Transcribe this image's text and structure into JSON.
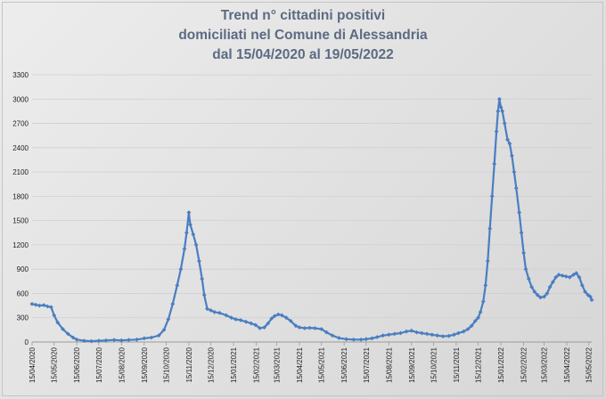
{
  "chart_data": {
    "type": "line",
    "title_lines": [
      "Trend n° cittadini positivi",
      "domiciliati nel Comune di Alessandria",
      "dal 15/04/2020 al 19/05/2022"
    ],
    "xlabel": "",
    "ylabel": "",
    "x_range": [
      "2020-04-15",
      "2022-05-19"
    ],
    "ylim": [
      0,
      3300
    ],
    "y_ticks": [
      0,
      300,
      600,
      900,
      1200,
      1500,
      1800,
      2100,
      2400,
      2700,
      3000,
      3300
    ],
    "x_ticks": [
      "15/04/2020",
      "15/05/2020",
      "15/06/2020",
      "15/07/2020",
      "15/08/2020",
      "15/09/2020",
      "15/10/2020",
      "15/11/2020",
      "15/12/2020",
      "15/01/2021",
      "15/02/2021",
      "15/03/2021",
      "15/04/2021",
      "15/05/2021",
      "15/06/2021",
      "15/07/2021",
      "15/08/2021",
      "15/09/2021",
      "15/10/2021",
      "15/11/2021",
      "15/12/2021",
      "15/01/2022",
      "15/02/2022",
      "15/03/2022",
      "15/04/2022",
      "15/05/2022"
    ],
    "grid": true,
    "legend": "none",
    "color": "#4a7ec1",
    "series": [
      {
        "points": [
          [
            "2020-04-15",
            470
          ],
          [
            "2020-04-20",
            460
          ],
          [
            "2020-04-25",
            450
          ],
          [
            "2020-05-01",
            455
          ],
          [
            "2020-05-06",
            440
          ],
          [
            "2020-05-11",
            430
          ],
          [
            "2020-05-15",
            330
          ],
          [
            "2020-05-20",
            240
          ],
          [
            "2020-05-27",
            160
          ],
          [
            "2020-06-03",
            100
          ],
          [
            "2020-06-10",
            55
          ],
          [
            "2020-06-15",
            30
          ],
          [
            "2020-06-25",
            15
          ],
          [
            "2020-07-05",
            10
          ],
          [
            "2020-07-15",
            15
          ],
          [
            "2020-07-25",
            20
          ],
          [
            "2020-08-05",
            25
          ],
          [
            "2020-08-15",
            20
          ],
          [
            "2020-08-25",
            25
          ],
          [
            "2020-09-05",
            30
          ],
          [
            "2020-09-15",
            45
          ],
          [
            "2020-09-25",
            55
          ],
          [
            "2020-10-05",
            80
          ],
          [
            "2020-10-12",
            150
          ],
          [
            "2020-10-18",
            280
          ],
          [
            "2020-10-24",
            470
          ],
          [
            "2020-10-30",
            700
          ],
          [
            "2020-11-04",
            900
          ],
          [
            "2020-11-09",
            1150
          ],
          [
            "2020-11-12",
            1350
          ],
          [
            "2020-11-15",
            1600
          ],
          [
            "2020-11-17",
            1450
          ],
          [
            "2020-11-21",
            1330
          ],
          [
            "2020-11-25",
            1200
          ],
          [
            "2020-11-29",
            1000
          ],
          [
            "2020-12-03",
            780
          ],
          [
            "2020-12-06",
            580
          ],
          [
            "2020-12-10",
            410
          ],
          [
            "2020-12-15",
            390
          ],
          [
            "2020-12-20",
            370
          ],
          [
            "2020-12-27",
            360
          ],
          [
            "2021-01-05",
            330
          ],
          [
            "2021-01-12",
            300
          ],
          [
            "2021-01-18",
            280
          ],
          [
            "2021-01-25",
            270
          ],
          [
            "2021-02-01",
            250
          ],
          [
            "2021-02-08",
            230
          ],
          [
            "2021-02-14",
            210
          ],
          [
            "2021-02-20",
            170
          ],
          [
            "2021-02-26",
            180
          ],
          [
            "2021-03-03",
            230
          ],
          [
            "2021-03-08",
            290
          ],
          [
            "2021-03-12",
            320
          ],
          [
            "2021-03-17",
            340
          ],
          [
            "2021-03-22",
            330
          ],
          [
            "2021-03-28",
            300
          ],
          [
            "2021-04-03",
            260
          ],
          [
            "2021-04-10",
            200
          ],
          [
            "2021-04-15",
            180
          ],
          [
            "2021-04-22",
            170
          ],
          [
            "2021-04-29",
            175
          ],
          [
            "2021-05-06",
            170
          ],
          [
            "2021-05-15",
            160
          ],
          [
            "2021-05-22",
            120
          ],
          [
            "2021-05-30",
            80
          ],
          [
            "2021-06-08",
            50
          ],
          [
            "2021-06-18",
            35
          ],
          [
            "2021-06-28",
            30
          ],
          [
            "2021-07-08",
            30
          ],
          [
            "2021-07-15",
            35
          ],
          [
            "2021-07-23",
            45
          ],
          [
            "2021-07-30",
            60
          ],
          [
            "2021-08-07",
            80
          ],
          [
            "2021-08-15",
            90
          ],
          [
            "2021-08-23",
            100
          ],
          [
            "2021-08-31",
            110
          ],
          [
            "2021-09-08",
            130
          ],
          [
            "2021-09-15",
            140
          ],
          [
            "2021-09-22",
            120
          ],
          [
            "2021-09-29",
            110
          ],
          [
            "2021-10-06",
            100
          ],
          [
            "2021-10-13",
            90
          ],
          [
            "2021-10-20",
            80
          ],
          [
            "2021-10-28",
            70
          ],
          [
            "2021-11-05",
            75
          ],
          [
            "2021-11-12",
            90
          ],
          [
            "2021-11-18",
            110
          ],
          [
            "2021-11-25",
            130
          ],
          [
            "2021-12-01",
            160
          ],
          [
            "2021-12-06",
            200
          ],
          [
            "2021-12-11",
            260
          ],
          [
            "2021-12-15",
            300
          ],
          [
            "2021-12-18",
            370
          ],
          [
            "2021-12-22",
            500
          ],
          [
            "2021-12-25",
            700
          ],
          [
            "2021-12-28",
            1000
          ],
          [
            "2021-12-31",
            1400
          ],
          [
            "2022-01-03",
            1800
          ],
          [
            "2022-01-06",
            2200
          ],
          [
            "2022-01-09",
            2600
          ],
          [
            "2022-01-11",
            2850
          ],
          [
            "2022-01-13",
            3000
          ],
          [
            "2022-01-15",
            2900
          ],
          [
            "2022-01-17",
            2850
          ],
          [
            "2022-01-20",
            2700
          ],
          [
            "2022-01-24",
            2500
          ],
          [
            "2022-01-27",
            2450
          ],
          [
            "2022-01-30",
            2300
          ],
          [
            "2022-02-02",
            2100
          ],
          [
            "2022-02-05",
            1900
          ],
          [
            "2022-02-09",
            1600
          ],
          [
            "2022-02-12",
            1350
          ],
          [
            "2022-02-15",
            1100
          ],
          [
            "2022-02-18",
            900
          ],
          [
            "2022-02-22",
            780
          ],
          [
            "2022-02-26",
            680
          ],
          [
            "2022-03-02",
            620
          ],
          [
            "2022-03-06",
            580
          ],
          [
            "2022-03-10",
            550
          ],
          [
            "2022-03-15",
            560
          ],
          [
            "2022-03-19",
            600
          ],
          [
            "2022-03-23",
            680
          ],
          [
            "2022-03-27",
            740
          ],
          [
            "2022-03-31",
            800
          ],
          [
            "2022-04-04",
            830
          ],
          [
            "2022-04-09",
            820
          ],
          [
            "2022-04-14",
            810
          ],
          [
            "2022-04-19",
            800
          ],
          [
            "2022-04-24",
            830
          ],
          [
            "2022-04-28",
            850
          ],
          [
            "2022-05-02",
            800
          ],
          [
            "2022-05-06",
            700
          ],
          [
            "2022-05-10",
            620
          ],
          [
            "2022-05-14",
            580
          ],
          [
            "2022-05-17",
            560
          ],
          [
            "2022-05-19",
            520
          ]
        ]
      }
    ]
  }
}
